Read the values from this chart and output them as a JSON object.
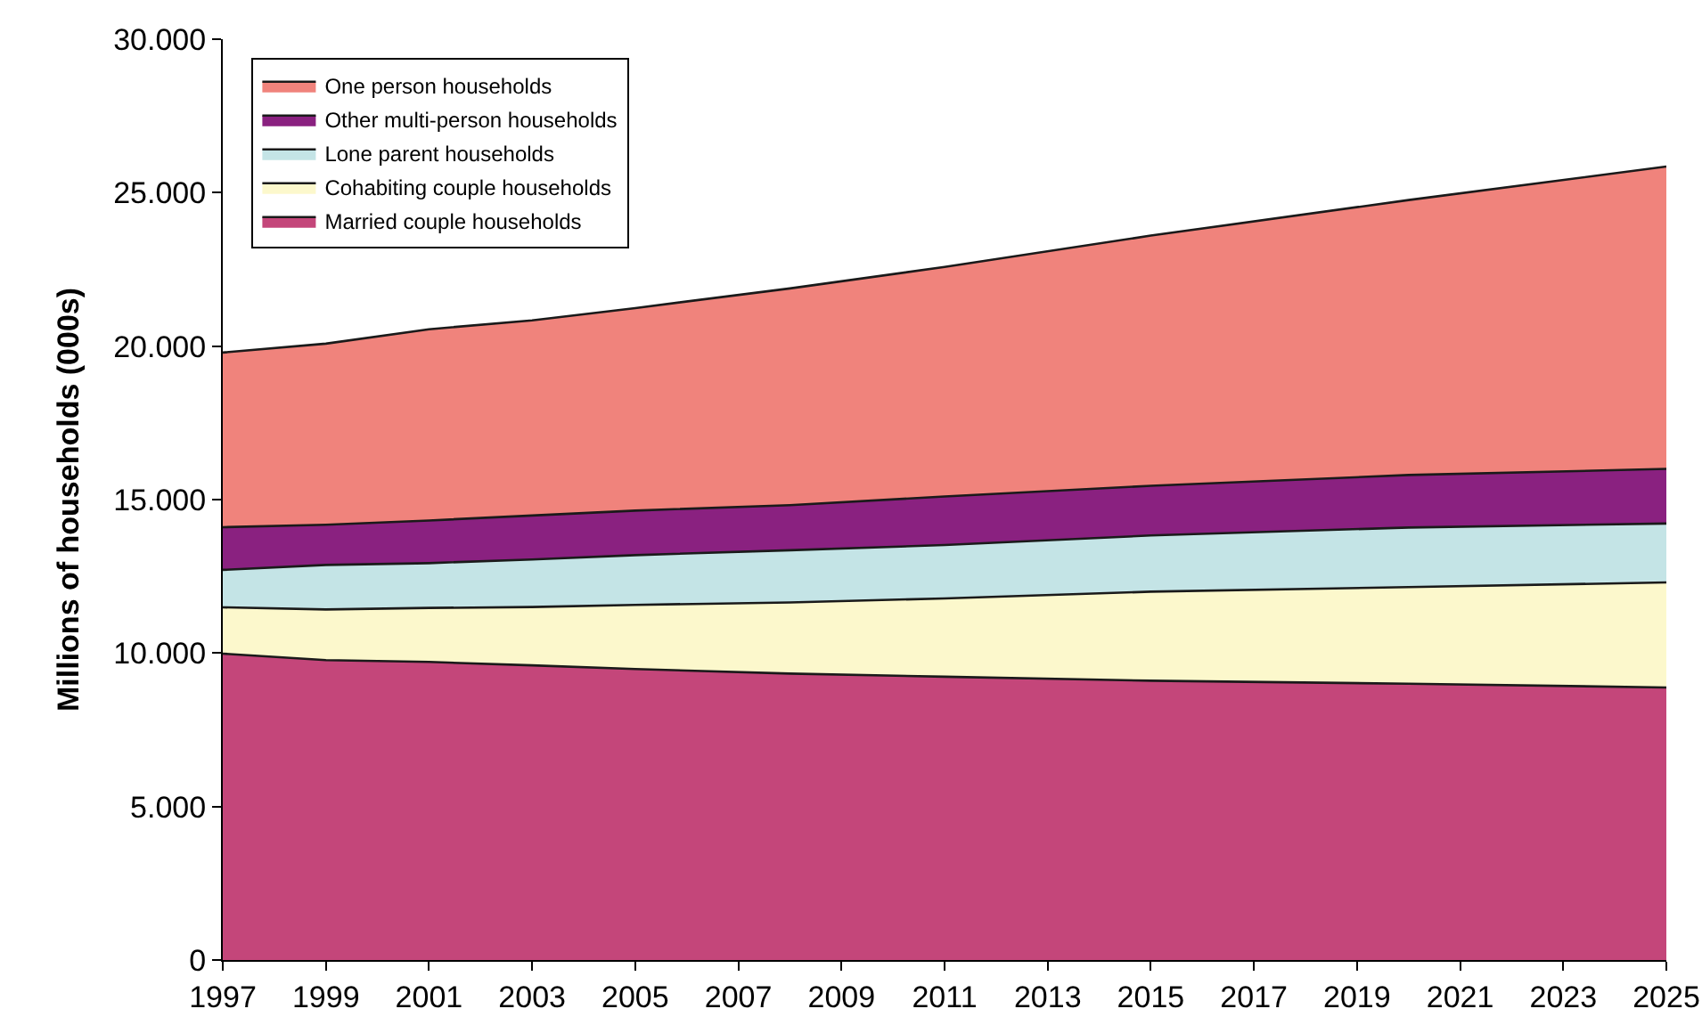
{
  "chart_data": {
    "type": "area",
    "stacked": true,
    "ylabel": "Millions of households (000s)",
    "x": [
      1997,
      1999,
      2001,
      2003,
      2005,
      2008,
      2011,
      2015,
      2020,
      2025
    ],
    "series": [
      {
        "name": "Married couple households",
        "color": "#c4467a",
        "values": [
          9980,
          9770,
          9710,
          9600,
          9480,
          9330,
          9230,
          9100,
          9000,
          8880
        ]
      },
      {
        "name": "Cohabiting couple households",
        "color": "#fcf8cc",
        "values": [
          1510,
          1650,
          1760,
          1900,
          2090,
          2320,
          2550,
          2900,
          3150,
          3420
        ]
      },
      {
        "name": "Lone parent households",
        "color": "#c4e4e6",
        "values": [
          1220,
          1450,
          1460,
          1550,
          1620,
          1700,
          1740,
          1830,
          1940,
          1920
        ]
      },
      {
        "name": "Other multi-person households",
        "color": "#8a2180",
        "values": [
          1390,
          1310,
          1390,
          1430,
          1450,
          1470,
          1580,
          1620,
          1710,
          1780
        ]
      },
      {
        "name": "One person households",
        "color": "#f0837c",
        "values": [
          5690,
          5900,
          6230,
          6360,
          6600,
          7060,
          7480,
          8150,
          8960,
          9850
        ]
      }
    ],
    "xlim": [
      1997,
      2025
    ],
    "xticks": [
      1997,
      1999,
      2001,
      2003,
      2005,
      2007,
      2009,
      2011,
      2013,
      2015,
      2017,
      2019,
      2021,
      2023,
      2025
    ],
    "ylim": [
      0,
      30000
    ],
    "yticks": [
      0,
      {
        "value": 5000,
        "label": "5.000"
      },
      {
        "value": 10000,
        "label": "10.000"
      },
      {
        "value": 15000,
        "label": "15.000"
      },
      {
        "value": 20000,
        "label": "20.000"
      },
      {
        "value": 25000,
        "label": "25.000"
      },
      {
        "value": 30000,
        "label": "30.000"
      }
    ],
    "grid": false,
    "legend": "top left",
    "marker": "none",
    "line_style": "solid"
  }
}
